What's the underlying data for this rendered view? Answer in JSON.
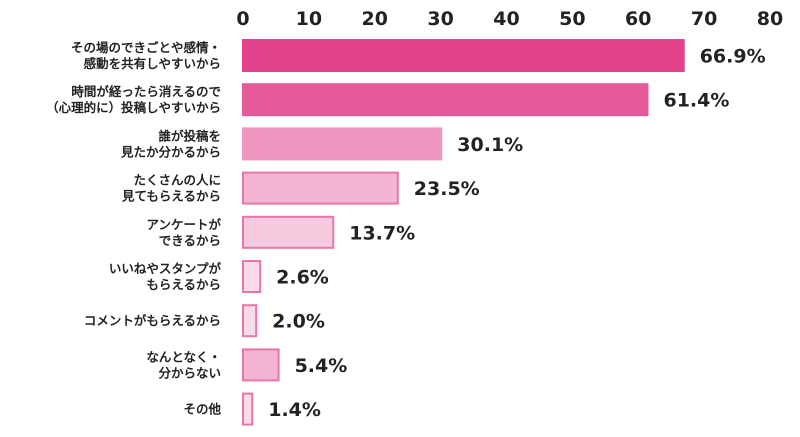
{
  "chart_data": {
    "type": "bar",
    "orientation": "horizontal",
    "title": "",
    "xlabel": "",
    "ylabel": "",
    "xlim": [
      0,
      80
    ],
    "ticks": [
      "0",
      "10",
      "20",
      "30",
      "40",
      "50",
      "60",
      "70",
      "80"
    ],
    "grid": false,
    "legend": "none",
    "categories": [
      [
        "その場のできごとや感情・",
        "感動を共有しやすいから"
      ],
      [
        "時間が経ったら消えるので",
        "（心理的に）投稿しやすいから"
      ],
      [
        "誰が投稿を",
        "見たか分かるから"
      ],
      [
        "たくさんの人に",
        "見てもらえるから"
      ],
      [
        "アンケートが",
        "できるから"
      ],
      [
        "いいねやスタンプが",
        "もらえるから"
      ],
      [
        "コメントがもらえるから"
      ],
      [
        "なんとなく・",
        "分からない"
      ],
      [
        "その他"
      ]
    ],
    "values": [
      66.9,
      61.4,
      30.1,
      23.5,
      13.7,
      2.6,
      2.0,
      5.4,
      1.4
    ],
    "value_labels": [
      "66.9%",
      "61.4%",
      "30.1%",
      "23.5%",
      "13.7%",
      "2.6%",
      "2.0%",
      "5.4%",
      "1.4%"
    ],
    "bar_fills": [
      "#e2428a",
      "#e55b99",
      "#ee96bf",
      "#f5b5d2",
      "#f7c9de",
      "#fbdbea",
      "#fbdbea",
      "#f5b5d2",
      "#fbdbea"
    ],
    "bar_strokes": [
      "#e2428a",
      "#e55b99",
      "#ee96bf",
      "#e777ab",
      "#e777ab",
      "#e777ab",
      "#e777ab",
      "#e777ab",
      "#e777ab"
    ]
  }
}
